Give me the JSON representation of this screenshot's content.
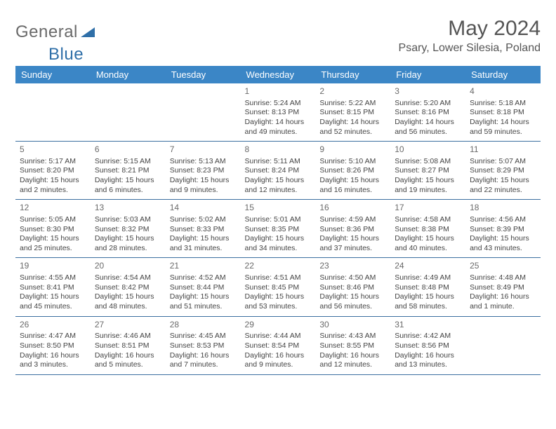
{
  "brand": {
    "text1": "General",
    "text2": "Blue"
  },
  "title": "May 2024",
  "location": "Psary, Lower Silesia, Poland",
  "accent": "#3b86c6",
  "daynames": [
    "Sunday",
    "Monday",
    "Tuesday",
    "Wednesday",
    "Thursday",
    "Friday",
    "Saturday"
  ],
  "weeks": [
    [
      null,
      null,
      null,
      {
        "n": "1",
        "sr": "5:24 AM",
        "ss": "8:13 PM",
        "dl": "14 hours and 49 minutes."
      },
      {
        "n": "2",
        "sr": "5:22 AM",
        "ss": "8:15 PM",
        "dl": "14 hours and 52 minutes."
      },
      {
        "n": "3",
        "sr": "5:20 AM",
        "ss": "8:16 PM",
        "dl": "14 hours and 56 minutes."
      },
      {
        "n": "4",
        "sr": "5:18 AM",
        "ss": "8:18 PM",
        "dl": "14 hours and 59 minutes."
      }
    ],
    [
      {
        "n": "5",
        "sr": "5:17 AM",
        "ss": "8:20 PM",
        "dl": "15 hours and 2 minutes."
      },
      {
        "n": "6",
        "sr": "5:15 AM",
        "ss": "8:21 PM",
        "dl": "15 hours and 6 minutes."
      },
      {
        "n": "7",
        "sr": "5:13 AM",
        "ss": "8:23 PM",
        "dl": "15 hours and 9 minutes."
      },
      {
        "n": "8",
        "sr": "5:11 AM",
        "ss": "8:24 PM",
        "dl": "15 hours and 12 minutes."
      },
      {
        "n": "9",
        "sr": "5:10 AM",
        "ss": "8:26 PM",
        "dl": "15 hours and 16 minutes."
      },
      {
        "n": "10",
        "sr": "5:08 AM",
        "ss": "8:27 PM",
        "dl": "15 hours and 19 minutes."
      },
      {
        "n": "11",
        "sr": "5:07 AM",
        "ss": "8:29 PM",
        "dl": "15 hours and 22 minutes."
      }
    ],
    [
      {
        "n": "12",
        "sr": "5:05 AM",
        "ss": "8:30 PM",
        "dl": "15 hours and 25 minutes."
      },
      {
        "n": "13",
        "sr": "5:03 AM",
        "ss": "8:32 PM",
        "dl": "15 hours and 28 minutes."
      },
      {
        "n": "14",
        "sr": "5:02 AM",
        "ss": "8:33 PM",
        "dl": "15 hours and 31 minutes."
      },
      {
        "n": "15",
        "sr": "5:01 AM",
        "ss": "8:35 PM",
        "dl": "15 hours and 34 minutes."
      },
      {
        "n": "16",
        "sr": "4:59 AM",
        "ss": "8:36 PM",
        "dl": "15 hours and 37 minutes."
      },
      {
        "n": "17",
        "sr": "4:58 AM",
        "ss": "8:38 PM",
        "dl": "15 hours and 40 minutes."
      },
      {
        "n": "18",
        "sr": "4:56 AM",
        "ss": "8:39 PM",
        "dl": "15 hours and 43 minutes."
      }
    ],
    [
      {
        "n": "19",
        "sr": "4:55 AM",
        "ss": "8:41 PM",
        "dl": "15 hours and 45 minutes."
      },
      {
        "n": "20",
        "sr": "4:54 AM",
        "ss": "8:42 PM",
        "dl": "15 hours and 48 minutes."
      },
      {
        "n": "21",
        "sr": "4:52 AM",
        "ss": "8:44 PM",
        "dl": "15 hours and 51 minutes."
      },
      {
        "n": "22",
        "sr": "4:51 AM",
        "ss": "8:45 PM",
        "dl": "15 hours and 53 minutes."
      },
      {
        "n": "23",
        "sr": "4:50 AM",
        "ss": "8:46 PM",
        "dl": "15 hours and 56 minutes."
      },
      {
        "n": "24",
        "sr": "4:49 AM",
        "ss": "8:48 PM",
        "dl": "15 hours and 58 minutes."
      },
      {
        "n": "25",
        "sr": "4:48 AM",
        "ss": "8:49 PM",
        "dl": "16 hours and 1 minute."
      }
    ],
    [
      {
        "n": "26",
        "sr": "4:47 AM",
        "ss": "8:50 PM",
        "dl": "16 hours and 3 minutes."
      },
      {
        "n": "27",
        "sr": "4:46 AM",
        "ss": "8:51 PM",
        "dl": "16 hours and 5 minutes."
      },
      {
        "n": "28",
        "sr": "4:45 AM",
        "ss": "8:53 PM",
        "dl": "16 hours and 7 minutes."
      },
      {
        "n": "29",
        "sr": "4:44 AM",
        "ss": "8:54 PM",
        "dl": "16 hours and 9 minutes."
      },
      {
        "n": "30",
        "sr": "4:43 AM",
        "ss": "8:55 PM",
        "dl": "16 hours and 12 minutes."
      },
      {
        "n": "31",
        "sr": "4:42 AM",
        "ss": "8:56 PM",
        "dl": "16 hours and 13 minutes."
      },
      null
    ]
  ],
  "labels": {
    "sunrise": "Sunrise: ",
    "sunset": "Sunset: ",
    "daylight": "Daylight: "
  }
}
